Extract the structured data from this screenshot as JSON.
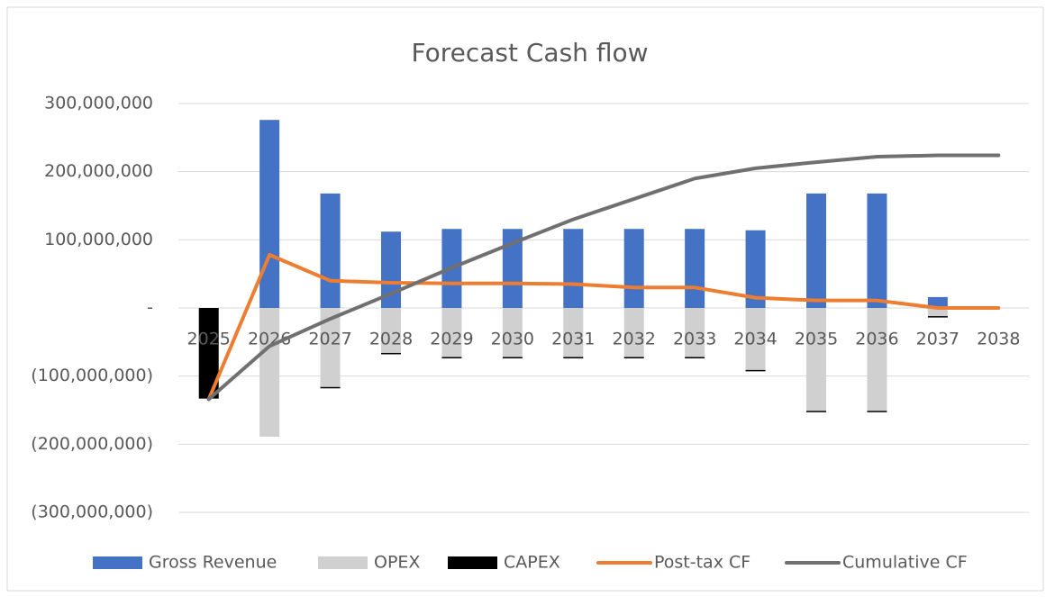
{
  "chart_data": {
    "type": "bar-line",
    "title": "Forecast Cash flow",
    "categories": [
      "2025",
      "2026",
      "2027",
      "2028",
      "2029",
      "2030",
      "2031",
      "2032",
      "2033",
      "2034",
      "2035",
      "2036",
      "2037",
      "2038"
    ],
    "series": [
      {
        "name": "Gross Revenue",
        "type": "bar",
        "color": "#4472c4",
        "values": [
          0,
          276000000,
          168000000,
          112000000,
          116000000,
          116000000,
          116000000,
          116000000,
          116000000,
          114000000,
          168000000,
          168000000,
          16000000,
          0
        ]
      },
      {
        "name": "OPEX",
        "type": "bar",
        "color": "#d0d0d0",
        "values": [
          0,
          -189000000,
          -116000000,
          -66000000,
          -72000000,
          -72000000,
          -72000000,
          -72000000,
          -72000000,
          -91000000,
          -151000000,
          -151000000,
          -12000000,
          0
        ]
      },
      {
        "name": "CAPEX",
        "type": "bar",
        "color": "#000000",
        "values": [
          -133000000,
          0,
          -2000000,
          -2000000,
          -2000000,
          -2000000,
          -2000000,
          -2000000,
          -2000000,
          -2000000,
          -2000000,
          -2000000,
          -2000000,
          0
        ]
      },
      {
        "name": "Post-tax CF",
        "type": "line",
        "color": "#ed7d31",
        "values": [
          -134000000,
          78000000,
          40000000,
          37000000,
          36000000,
          36000000,
          35000000,
          30000000,
          30000000,
          15000000,
          11000000,
          11000000,
          0,
          0
        ]
      },
      {
        "name": "Cumulative CF",
        "type": "line",
        "color": "#707070",
        "values": [
          -134000000,
          -56000000,
          -16000000,
          21000000,
          59000000,
          95000000,
          130000000,
          160000000,
          190000000,
          205000000,
          214000000,
          222000000,
          224000000,
          224000000
        ]
      }
    ],
    "ylim": [
      -300000000,
      300000000
    ],
    "yticks": [
      {
        "value": -300000000,
        "label": "(300,000,000)"
      },
      {
        "value": -200000000,
        "label": "(200,000,000)"
      },
      {
        "value": -100000000,
        "label": "(100,000,000)"
      },
      {
        "value": 0,
        "label": "-"
      },
      {
        "value": 100000000,
        "label": "100,000,000"
      },
      {
        "value": 200000000,
        "label": "200,000,000"
      },
      {
        "value": 300000000,
        "label": "300,000,000"
      }
    ],
    "grid": true,
    "legend": "bottom"
  }
}
